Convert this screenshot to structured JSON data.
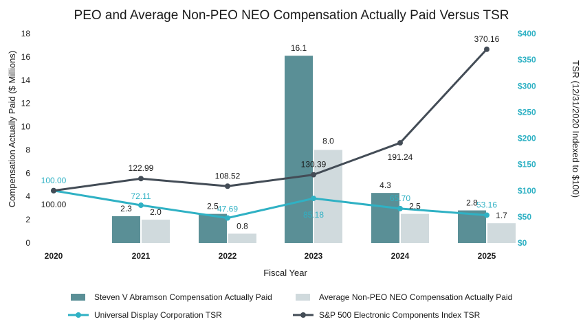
{
  "chart_data": {
    "type": "bar",
    "title": "PEO and Average Non-PEO NEO Compensation Actually Paid Versus TSR",
    "xlabel": "Fiscal Year",
    "ylabel": "Compensation Actually Paid ($ Millions)",
    "ylabel_right": "TSR (12/31/2020 Indexed to $100)",
    "categories": [
      "2020",
      "2021",
      "2022",
      "2023",
      "2024",
      "2025"
    ],
    "ylim": [
      0,
      18
    ],
    "ylim_right": [
      0,
      400
    ],
    "yticks": [
      "0",
      "2",
      "4",
      "6",
      "8",
      "10",
      "12",
      "14",
      "16",
      "18"
    ],
    "yticks_right": [
      "$0",
      "$50",
      "$100",
      "$150",
      "$200",
      "$250",
      "$300",
      "$350",
      "$400"
    ],
    "bar_series": [
      {
        "name": "Steven V Abramson Compensation Actually Paid",
        "color": "#5a8f96",
        "values": [
          null,
          2.3,
          2.5,
          16.1,
          4.3,
          2.8
        ],
        "labels": [
          "",
          "2.3",
          "2.5",
          "16.1",
          "4.3",
          "2.8"
        ]
      },
      {
        "name": "Average Non-PEO NEO Compensation Actually Paid",
        "color": "#d0dadd",
        "values": [
          null,
          2.0,
          0.8,
          8.0,
          2.5,
          1.7
        ],
        "labels": [
          "",
          "2.0",
          "0.8",
          "8.0",
          "2.5",
          "1.7"
        ]
      }
    ],
    "line_series": [
      {
        "name": "Universal Display Corporation TSR",
        "color": "#2fb1c4",
        "values": [
          100.0,
          72.11,
          47.69,
          85.18,
          65.7,
          53.16
        ],
        "labels": [
          "100.00",
          "72.11",
          "47.69",
          "85.18",
          "65.70",
          "53.16"
        ]
      },
      {
        "name": "S&P 500 Electronic Components Index TSR",
        "color": "#434c56",
        "values": [
          100.0,
          122.99,
          108.52,
          130.39,
          191.24,
          370.16
        ],
        "labels": [
          "100.00",
          "122.99",
          "108.52",
          "130.39",
          "191.24",
          "370.16"
        ]
      }
    ],
    "legend_position": "bottom",
    "grid": false
  }
}
